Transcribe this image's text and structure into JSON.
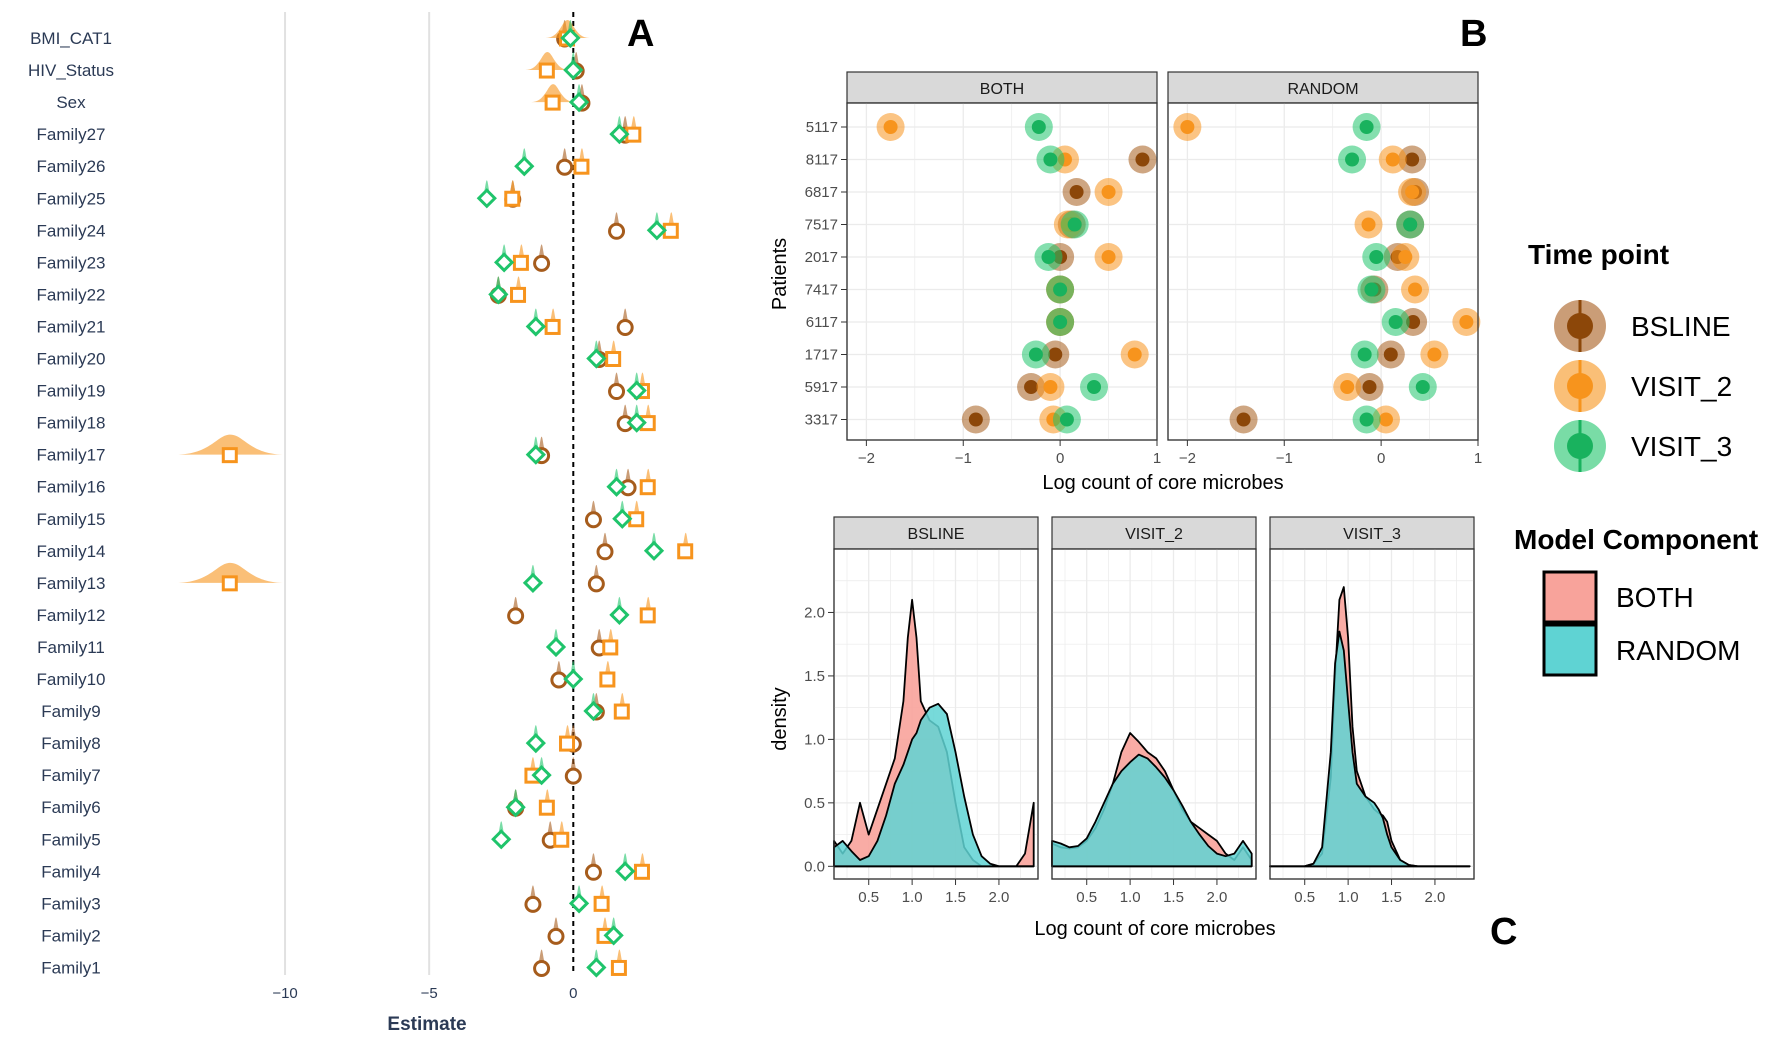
{
  "panels": {
    "a": "A",
    "b": "B",
    "c": "C"
  },
  "chart_data": [
    {
      "id": "A",
      "type": "scatter",
      "xlabel": "Estimate",
      "xlim": [
        -14.2,
        4.5
      ],
      "xticks": [
        -10,
        -5,
        0
      ],
      "tick_labels": [
        "−10",
        "−5",
        "0"
      ],
      "reference_line": 0,
      "categories": [
        "BMI_CAT1",
        "HIV_Status",
        "Sex",
        "Family27",
        "Family26",
        "Family25",
        "Family24",
        "Family23",
        "Family22",
        "Family21",
        "Family20",
        "Family19",
        "Family18",
        "Family17",
        "Family16",
        "Family15",
        "Family14",
        "Family13",
        "Family12",
        "Family11",
        "Family10",
        "Family9",
        "Family8",
        "Family7",
        "Family6",
        "Family5",
        "Family4",
        "Family3",
        "Family2",
        "Family1"
      ],
      "series": [
        {
          "name": "BSLINE",
          "marker": "circle",
          "color": "#a65c1c",
          "values": [
            -0.3,
            0.1,
            0.3,
            1.8,
            -0.3,
            -2.1,
            1.5,
            -1.1,
            -2.6,
            1.8,
            0.9,
            1.5,
            1.8,
            -1.1,
            1.9,
            0.7,
            1.1,
            0.8,
            -2.0,
            0.9,
            -0.5,
            0.8,
            0.0,
            0.0,
            -2.0,
            -0.8,
            0.7,
            -1.4,
            -0.6,
            -1.1
          ]
        },
        {
          "name": "VISIT_2",
          "marker": "square",
          "color": "#f7941d",
          "values": [
            -0.2,
            -0.9,
            -0.7,
            2.1,
            0.3,
            -2.1,
            3.4,
            -1.8,
            -1.9,
            -0.7,
            1.4,
            2.4,
            2.6,
            -11.9,
            2.6,
            2.2,
            3.9,
            -11.9,
            2.6,
            1.3,
            1.2,
            1.7,
            -0.2,
            -1.4,
            -0.9,
            -0.4,
            2.4,
            1.0,
            1.1,
            1.6
          ]
        },
        {
          "name": "VISIT_3",
          "marker": "diamond",
          "color": "#1fc46b",
          "values": [
            -0.1,
            0.0,
            0.2,
            1.6,
            -1.7,
            -3.0,
            2.9,
            -2.4,
            -2.6,
            -1.3,
            0.8,
            2.2,
            2.2,
            -1.3,
            1.5,
            1.7,
            2.8,
            -1.4,
            1.6,
            -0.6,
            0.0,
            0.7,
            -1.3,
            -1.1,
            -2.0,
            -2.5,
            1.8,
            0.2,
            1.4,
            0.8
          ]
        }
      ]
    },
    {
      "id": "B",
      "type": "scatter",
      "title": "",
      "xlabel": "Log count of core microbes",
      "ylabel": "Patients",
      "xlim": [
        -2.2,
        1.0
      ],
      "xticks": [
        -2,
        -1,
        0,
        1
      ],
      "tick_labels": [
        "−2",
        "−1",
        "0",
        "1"
      ],
      "patients": [
        "5117",
        "8117",
        "6817",
        "7517",
        "2017",
        "7417",
        "6117",
        "1717",
        "5917",
        "3317"
      ],
      "facets": [
        {
          "strip": "BOTH",
          "series": [
            {
              "name": "BSLINE",
              "values": [
                null,
                0.85,
                0.17,
                0.12,
                0.0,
                0.0,
                0.0,
                -0.05,
                -0.3,
                -0.87
              ]
            },
            {
              "name": "VISIT_2",
              "values": [
                -1.75,
                0.05,
                0.5,
                0.08,
                0.5,
                0.0,
                0.0,
                0.77,
                -0.1,
                -0.07
              ]
            },
            {
              "name": "VISIT_3",
              "values": [
                -0.22,
                -0.1,
                null,
                0.15,
                -0.12,
                0.0,
                0.0,
                -0.25,
                0.35,
                0.07
              ]
            }
          ]
        },
        {
          "strip": "RANDOM",
          "series": [
            {
              "name": "BSLINE",
              "values": [
                null,
                0.32,
                0.35,
                0.3,
                0.17,
                -0.07,
                0.33,
                0.1,
                -0.12,
                -1.42
              ]
            },
            {
              "name": "VISIT_2",
              "values": [
                -2.0,
                0.12,
                0.32,
                -0.13,
                0.25,
                0.35,
                0.88,
                0.55,
                -0.35,
                0.05
              ]
            },
            {
              "name": "VISIT_3",
              "values": [
                -0.15,
                -0.3,
                null,
                0.3,
                -0.05,
                -0.1,
                0.15,
                -0.17,
                0.43,
                -0.15
              ]
            }
          ]
        }
      ]
    },
    {
      "id": "C",
      "type": "area",
      "xlabel": "Log count of core microbes",
      "ylabel": "density",
      "xlim": [
        0.1,
        2.45
      ],
      "ylim": [
        -0.1,
        2.5
      ],
      "xticks": [
        0.5,
        1.0,
        1.5,
        2.0
      ],
      "xtick_labels": [
        "0.5",
        "1.0",
        "1.5",
        "2.0"
      ],
      "yticks": [
        0.0,
        0.5,
        1.0,
        1.5,
        2.0
      ],
      "ytick_labels": [
        "0.0",
        "0.5",
        "1.0",
        "1.5",
        "2.0"
      ],
      "facets": [
        {
          "strip": "BSLINE",
          "x": [
            0.1,
            0.2,
            0.3,
            0.4,
            0.5,
            0.6,
            0.7,
            0.8,
            0.9,
            0.95,
            1.0,
            1.05,
            1.1,
            1.2,
            1.3,
            1.4,
            1.5,
            1.6,
            1.7,
            1.8,
            1.9,
            2.0,
            2.1,
            2.2,
            2.3,
            2.4
          ],
          "series": [
            {
              "name": "BOTH",
              "values": [
                0.2,
                0.1,
                0.2,
                0.5,
                0.25,
                0.45,
                0.65,
                0.85,
                1.3,
                1.8,
                2.1,
                1.8,
                1.3,
                1.15,
                1.1,
                0.9,
                0.5,
                0.15,
                0.05,
                0.0,
                0.0,
                0.0,
                0.0,
                0.0,
                0.1,
                0.5
              ]
            },
            {
              "name": "RANDOM",
              "values": [
                0.15,
                0.2,
                0.12,
                0.05,
                0.08,
                0.2,
                0.4,
                0.65,
                0.8,
                0.9,
                1.0,
                1.05,
                1.15,
                1.25,
                1.28,
                1.2,
                0.9,
                0.55,
                0.25,
                0.08,
                0.02,
                0.0,
                0.0,
                0.0,
                0.0,
                0.0
              ]
            }
          ]
        },
        {
          "strip": "VISIT_2",
          "x": [
            0.1,
            0.2,
            0.3,
            0.4,
            0.5,
            0.6,
            0.7,
            0.8,
            0.9,
            1.0,
            1.1,
            1.2,
            1.3,
            1.4,
            1.5,
            1.6,
            1.7,
            1.8,
            1.9,
            2.0,
            2.1,
            2.2,
            2.3,
            2.4
          ],
          "series": [
            {
              "name": "BOTH",
              "values": [
                0.18,
                0.15,
                0.14,
                0.15,
                0.2,
                0.3,
                0.45,
                0.65,
                0.9,
                1.05,
                0.98,
                0.9,
                0.85,
                0.75,
                0.6,
                0.45,
                0.35,
                0.3,
                0.25,
                0.2,
                0.1,
                0.05,
                0.15,
                0.05
              ]
            },
            {
              "name": "RANDOM",
              "values": [
                0.2,
                0.18,
                0.15,
                0.16,
                0.22,
                0.35,
                0.5,
                0.65,
                0.75,
                0.82,
                0.88,
                0.85,
                0.78,
                0.7,
                0.6,
                0.48,
                0.35,
                0.25,
                0.16,
                0.1,
                0.08,
                0.1,
                0.2,
                0.1
              ]
            }
          ]
        },
        {
          "strip": "VISIT_3",
          "x": [
            0.1,
            0.2,
            0.3,
            0.4,
            0.5,
            0.6,
            0.7,
            0.8,
            0.85,
            0.9,
            0.95,
            1.0,
            1.05,
            1.1,
            1.2,
            1.3,
            1.35,
            1.4,
            1.45,
            1.5,
            1.6,
            1.7,
            1.8,
            2.0,
            2.2,
            2.4
          ],
          "series": [
            {
              "name": "BOTH",
              "values": [
                0.0,
                0.0,
                0.0,
                0.0,
                0.0,
                0.02,
                0.1,
                0.7,
                1.5,
                2.1,
                2.2,
                1.8,
                1.1,
                0.75,
                0.55,
                0.45,
                0.42,
                0.4,
                0.35,
                0.2,
                0.05,
                0.01,
                0.0,
                0.0,
                0.0,
                0.0
              ]
            },
            {
              "name": "RANDOM",
              "values": [
                0.0,
                0.0,
                0.0,
                0.0,
                0.0,
                0.02,
                0.15,
                0.9,
                1.6,
                1.85,
                1.7,
                1.3,
                0.9,
                0.65,
                0.55,
                0.5,
                0.45,
                0.38,
                0.25,
                0.15,
                0.05,
                0.01,
                0.0,
                0.0,
                0.0,
                0.0
              ]
            }
          ]
        }
      ]
    }
  ],
  "legend": {
    "time_point": {
      "title": "Time point",
      "items": [
        {
          "label": "BSLINE",
          "color": "#a65c1c",
          "dark": "#8c4709"
        },
        {
          "label": "VISIT_2",
          "color": "#f7941d",
          "dark": "#f7941d"
        },
        {
          "label": "VISIT_3",
          "color": "#1fc46b",
          "dark": "#19b25e"
        }
      ]
    },
    "model_component": {
      "title": "Model Component",
      "items": [
        {
          "label": "BOTH",
          "color": "#f8a39b"
        },
        {
          "label": "RANDOM",
          "color": "#5fd3d3"
        }
      ]
    }
  }
}
